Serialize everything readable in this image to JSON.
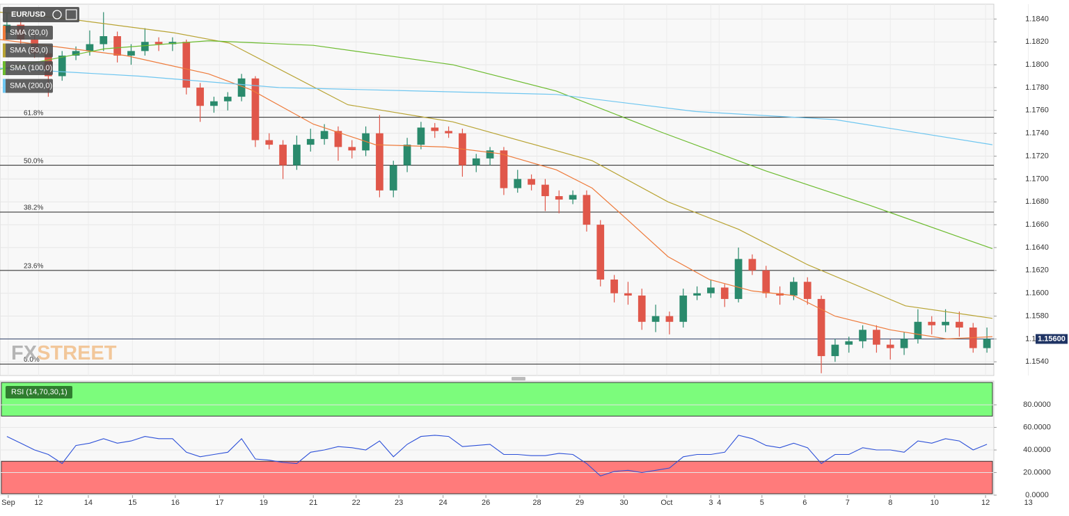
{
  "chart_data": [
    {
      "type": "candlestick",
      "title": "EUR/USD",
      "watermark": [
        "FX",
        "STREET"
      ],
      "xlim": [
        0,
        72
      ],
      "ylim": [
        1.1528,
        1.1853
      ],
      "yticks": [
        {
          "value": 1.154,
          "label": "1.1540"
        },
        {
          "value": 1.156,
          "label": "1.1560"
        },
        {
          "value": 1.158,
          "label": "1.1580"
        },
        {
          "value": 1.16,
          "label": "1.1600"
        },
        {
          "value": 1.162,
          "label": "1.1620"
        },
        {
          "value": 1.164,
          "label": "1.1640"
        },
        {
          "value": 1.166,
          "label": "1.1660"
        },
        {
          "value": 1.168,
          "label": "1.1680"
        },
        {
          "value": 1.17,
          "label": "1.1700"
        },
        {
          "value": 1.172,
          "label": "1.1720"
        },
        {
          "value": 1.174,
          "label": "1.1740"
        },
        {
          "value": 1.176,
          "label": "1.1760"
        },
        {
          "value": 1.178,
          "label": "1.1780"
        },
        {
          "value": 1.18,
          "label": "1.1800"
        },
        {
          "value": 1.182,
          "label": "1.1820"
        },
        {
          "value": 1.184,
          "label": "1.1840"
        }
      ],
      "grid": true,
      "up_color": "#2a8a6c",
      "down_color": "#e0574a",
      "candles": {
        "open": [
          1.1828,
          1.1835,
          1.1822,
          1.181,
          1.179,
          1.1808,
          1.1812,
          1.1818,
          1.1825,
          1.1808,
          1.1812,
          1.182,
          1.1818,
          1.182,
          1.178,
          1.1764,
          1.1768,
          1.1772,
          1.1788,
          1.1734,
          1.173,
          1.1712,
          1.173,
          1.1735,
          1.1742,
          1.1728,
          1.1725,
          1.174,
          1.169,
          1.1712,
          1.173,
          1.1745,
          1.1742,
          1.174,
          1.1712,
          1.1718,
          1.1725,
          1.1692,
          1.17,
          1.1695,
          1.1685,
          1.1682,
          1.1686,
          1.166,
          1.1612,
          1.16,
          1.1598,
          1.1575,
          1.158,
          1.1575,
          1.1598,
          1.16,
          1.1605,
          1.1595,
          1.163,
          1.162,
          1.16,
          1.1598,
          1.161,
          1.1595,
          1.1545,
          1.1555,
          1.1558,
          1.1568,
          1.1555,
          1.1552,
          1.156,
          1.1575,
          1.1572,
          1.1575,
          1.157,
          1.1552
        ],
        "high": [
          1.1845,
          1.184,
          1.1826,
          1.1814,
          1.1812,
          1.1816,
          1.183,
          1.1846,
          1.1829,
          1.1818,
          1.1832,
          1.1824,
          1.1824,
          1.1822,
          1.1784,
          1.1772,
          1.1776,
          1.1792,
          1.179,
          1.174,
          1.1734,
          1.1738,
          1.1744,
          1.1748,
          1.1746,
          1.1734,
          1.1746,
          1.1756,
          1.1716,
          1.1736,
          1.175,
          1.1749,
          1.1746,
          1.1744,
          1.1722,
          1.1728,
          1.1728,
          1.1708,
          1.1704,
          1.17,
          1.169,
          1.169,
          1.169,
          1.1664,
          1.1616,
          1.161,
          1.1604,
          1.159,
          1.1584,
          1.1604,
          1.1606,
          1.1612,
          1.1608,
          1.164,
          1.1634,
          1.1624,
          1.1606,
          1.1614,
          1.1614,
          1.1598,
          1.156,
          1.1562,
          1.1572,
          1.1572,
          1.156,
          1.1566,
          1.1586,
          1.158,
          1.1586,
          1.1584,
          1.1574,
          1.157
        ],
        "low": [
          1.1822,
          1.1818,
          1.1806,
          1.1772,
          1.1786,
          1.1804,
          1.1808,
          1.1812,
          1.1802,
          1.18,
          1.1808,
          1.1812,
          1.1812,
          1.1774,
          1.175,
          1.1758,
          1.176,
          1.1768,
          1.1728,
          1.1726,
          1.17,
          1.1708,
          1.1724,
          1.173,
          1.1716,
          1.1718,
          1.172,
          1.1684,
          1.1684,
          1.1706,
          1.1726,
          1.1736,
          1.1736,
          1.1702,
          1.1706,
          1.1712,
          1.1686,
          1.1688,
          1.169,
          1.1672,
          1.167,
          1.1678,
          1.1654,
          1.1606,
          1.1592,
          1.159,
          1.1568,
          1.1566,
          1.1564,
          1.157,
          1.1594,
          1.1596,
          1.1588,
          1.1592,
          1.1616,
          1.1596,
          1.159,
          1.1594,
          1.159,
          1.153,
          1.154,
          1.1548,
          1.1552,
          1.1548,
          1.1542,
          1.1546,
          1.1556,
          1.1564,
          1.1566,
          1.1562,
          1.1548,
          1.1548
        ],
        "close": [
          1.1835,
          1.1822,
          1.181,
          1.179,
          1.1808,
          1.1812,
          1.1818,
          1.1825,
          1.1808,
          1.1812,
          1.182,
          1.1818,
          1.182,
          1.178,
          1.1764,
          1.1768,
          1.1772,
          1.1788,
          1.1734,
          1.173,
          1.1712,
          1.173,
          1.1735,
          1.1742,
          1.1728,
          1.1725,
          1.174,
          1.169,
          1.1712,
          1.173,
          1.1745,
          1.1742,
          1.174,
          1.1712,
          1.1718,
          1.1725,
          1.1692,
          1.17,
          1.1695,
          1.1685,
          1.1682,
          1.1686,
          1.166,
          1.1612,
          1.16,
          1.1598,
          1.1575,
          1.158,
          1.1575,
          1.1598,
          1.16,
          1.1605,
          1.1595,
          1.163,
          1.162,
          1.16,
          1.1598,
          1.161,
          1.1595,
          1.1545,
          1.1555,
          1.1558,
          1.1568,
          1.1555,
          1.1552,
          1.156,
          1.1575,
          1.1572,
          1.1575,
          1.157,
          1.1552,
          1.156
        ]
      },
      "series": [
        {
          "name": "SMA (20,0)",
          "color": "#ee7a3a",
          "x": [
            0,
            9.1,
            15.1,
            18.2,
            22.7,
            27.2,
            32.3,
            36.3,
            40.3,
            42.9,
            45.4,
            48.4,
            51.4,
            54.5,
            57.5,
            60.5,
            64.5,
            68.6,
            71.9
          ],
          "values": [
            1.1822,
            1.1808,
            1.1792,
            1.1778,
            1.1748,
            1.173,
            1.1728,
            1.1722,
            1.1708,
            1.1692,
            1.1665,
            1.1632,
            1.1612,
            1.1602,
            1.1598,
            1.158,
            1.1568,
            1.156,
            1.1562
          ]
        },
        {
          "name": "SMA (50,0)",
          "color": "#b8a332",
          "x": [
            0,
            5,
            12.6,
            16.6,
            25.2,
            32.8,
            42.9,
            48.4,
            53.5,
            58.5,
            65.6,
            71.9
          ],
          "values": [
            1.1846,
            1.184,
            1.1828,
            1.1819,
            1.1765,
            1.175,
            1.1716,
            1.168,
            1.1656,
            1.1625,
            1.1589,
            1.1578
          ]
        },
        {
          "name": "SMA (100,0)",
          "color": "#6cbb2e",
          "x": [
            0,
            7.6,
            15.1,
            22.7,
            32.8,
            40.3,
            47.9,
            55.5,
            63.0,
            71.9
          ],
          "values": [
            1.1796,
            1.1814,
            1.1821,
            1.1817,
            1.18,
            1.1777,
            1.1741,
            1.1707,
            1.1677,
            1.1639
          ]
        },
        {
          "name": "SMA (200,0)",
          "color": "#6ec6f0",
          "x": [
            0,
            10.1,
            20.2,
            30.3,
            40.3,
            50.4,
            60.5,
            71.9
          ],
          "values": [
            1.1797,
            1.179,
            1.178,
            1.1777,
            1.1774,
            1.1759,
            1.1752,
            1.173
          ]
        }
      ],
      "fib_levels": [
        {
          "label": "61.8%",
          "value": 1.1754
        },
        {
          "label": "50.0%",
          "value": 1.1712
        },
        {
          "label": "38.2%",
          "value": 1.1671
        },
        {
          "label": "23.6%",
          "value": 1.162
        },
        {
          "label": "0.0%",
          "value": 1.1538
        }
      ],
      "last_price": {
        "value": 1.156,
        "label": "1.15600"
      }
    },
    {
      "type": "line",
      "title": "RSI (14,70,30,1)",
      "color": "#2b4fd8",
      "overbought": 70,
      "oversold": 30,
      "overbought_color": "#7cfc7c",
      "oversold_color": "#ff7b7b",
      "ylim": [
        0,
        101
      ],
      "yticks": [
        {
          "value": 0,
          "label": "0.0000"
        },
        {
          "value": 20,
          "label": "20.0000"
        },
        {
          "value": 40,
          "label": "40.0000"
        },
        {
          "value": 60,
          "label": "60.0000"
        },
        {
          "value": 80,
          "label": "80.0000"
        }
      ],
      "values": [
        52,
        46,
        40,
        36,
        28,
        44,
        46,
        50,
        46,
        48,
        52,
        50,
        50,
        38,
        34,
        36,
        38,
        50,
        32,
        31,
        29,
        28,
        38,
        40,
        43,
        42,
        40,
        48,
        34,
        45,
        52,
        53,
        52,
        43,
        44,
        45,
        36,
        36,
        35,
        35,
        37,
        36,
        28,
        17,
        21,
        22,
        20,
        22,
        24,
        34,
        36,
        36,
        38,
        53,
        50,
        44,
        42,
        46,
        42,
        28,
        36,
        36,
        42,
        40,
        40,
        38,
        48,
        46,
        50,
        48,
        40,
        45
      ],
      "xticks": [
        {
          "value": 0.6,
          "label": "Sep"
        },
        {
          "value": 2.8,
          "label": "12"
        },
        {
          "value": 6.4,
          "label": "14"
        },
        {
          "value": 9.6,
          "label": "15"
        },
        {
          "value": 12.7,
          "label": "16"
        },
        {
          "value": 15.9,
          "label": "17"
        },
        {
          "value": 19.1,
          "label": "19"
        },
        {
          "value": 22.7,
          "label": "21"
        },
        {
          "value": 25.8,
          "label": "22"
        },
        {
          "value": 28.9,
          "label": "23"
        },
        {
          "value": 32.1,
          "label": "24"
        },
        {
          "value": 35.2,
          "label": "26"
        },
        {
          "value": 38.9,
          "label": "28"
        },
        {
          "value": 42.0,
          "label": "29"
        },
        {
          "value": 45.2,
          "label": "30"
        },
        {
          "value": 48.3,
          "label": "Oct"
        },
        {
          "value": 51.5,
          "label": "3"
        },
        {
          "value": 52.1,
          "label": "4"
        },
        {
          "value": 55.2,
          "label": "5"
        },
        {
          "value": 58.3,
          "label": "6"
        },
        {
          "value": 61.4,
          "label": "7"
        },
        {
          "value": 64.5,
          "label": "8"
        },
        {
          "value": 67.7,
          "label": "10"
        },
        {
          "value": 71.4,
          "label": "12"
        },
        {
          "value": 74.5,
          "label": "13"
        }
      ]
    }
  ]
}
